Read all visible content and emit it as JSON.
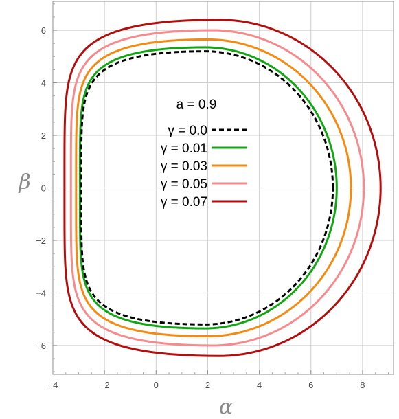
{
  "chart_data": {
    "type": "line",
    "xlabel": "α",
    "ylabel": "β",
    "xlim": [
      -4,
      9.2
    ],
    "ylim": [
      -7.1,
      7.1
    ],
    "x_ticks": [
      -4,
      -2,
      0,
      2,
      4,
      6,
      8
    ],
    "y_ticks": [
      -6,
      -4,
      -2,
      0,
      2,
      4,
      6
    ],
    "grid": true,
    "annotation": "a = 0.9",
    "legend_position": "center",
    "series": [
      {
        "name": "γ = 0.0",
        "color": "#000000",
        "dashed": true,
        "x_left": -2.9,
        "x_right": 6.85,
        "x_top": 1.9,
        "y_top": 5.2
      },
      {
        "name": "γ = 0.01",
        "color": "#12a712",
        "dashed": false,
        "x_left": -2.95,
        "x_right": 7.0,
        "x_top": 1.9,
        "y_top": 5.35
      },
      {
        "name": "γ = 0.03",
        "color": "#f58a10",
        "dashed": false,
        "x_left": -3.1,
        "x_right": 7.55,
        "x_top": 2.0,
        "y_top": 5.65
      },
      {
        "name": "γ = 0.05",
        "color": "#f78a8d",
        "dashed": false,
        "x_left": -3.3,
        "x_right": 8.05,
        "x_top": 2.2,
        "y_top": 6.0
      },
      {
        "name": "γ = 0.07",
        "color": "#b30e0e",
        "dashed": false,
        "x_left": -3.55,
        "x_right": 8.7,
        "x_top": 2.45,
        "y_top": 6.4
      }
    ]
  }
}
